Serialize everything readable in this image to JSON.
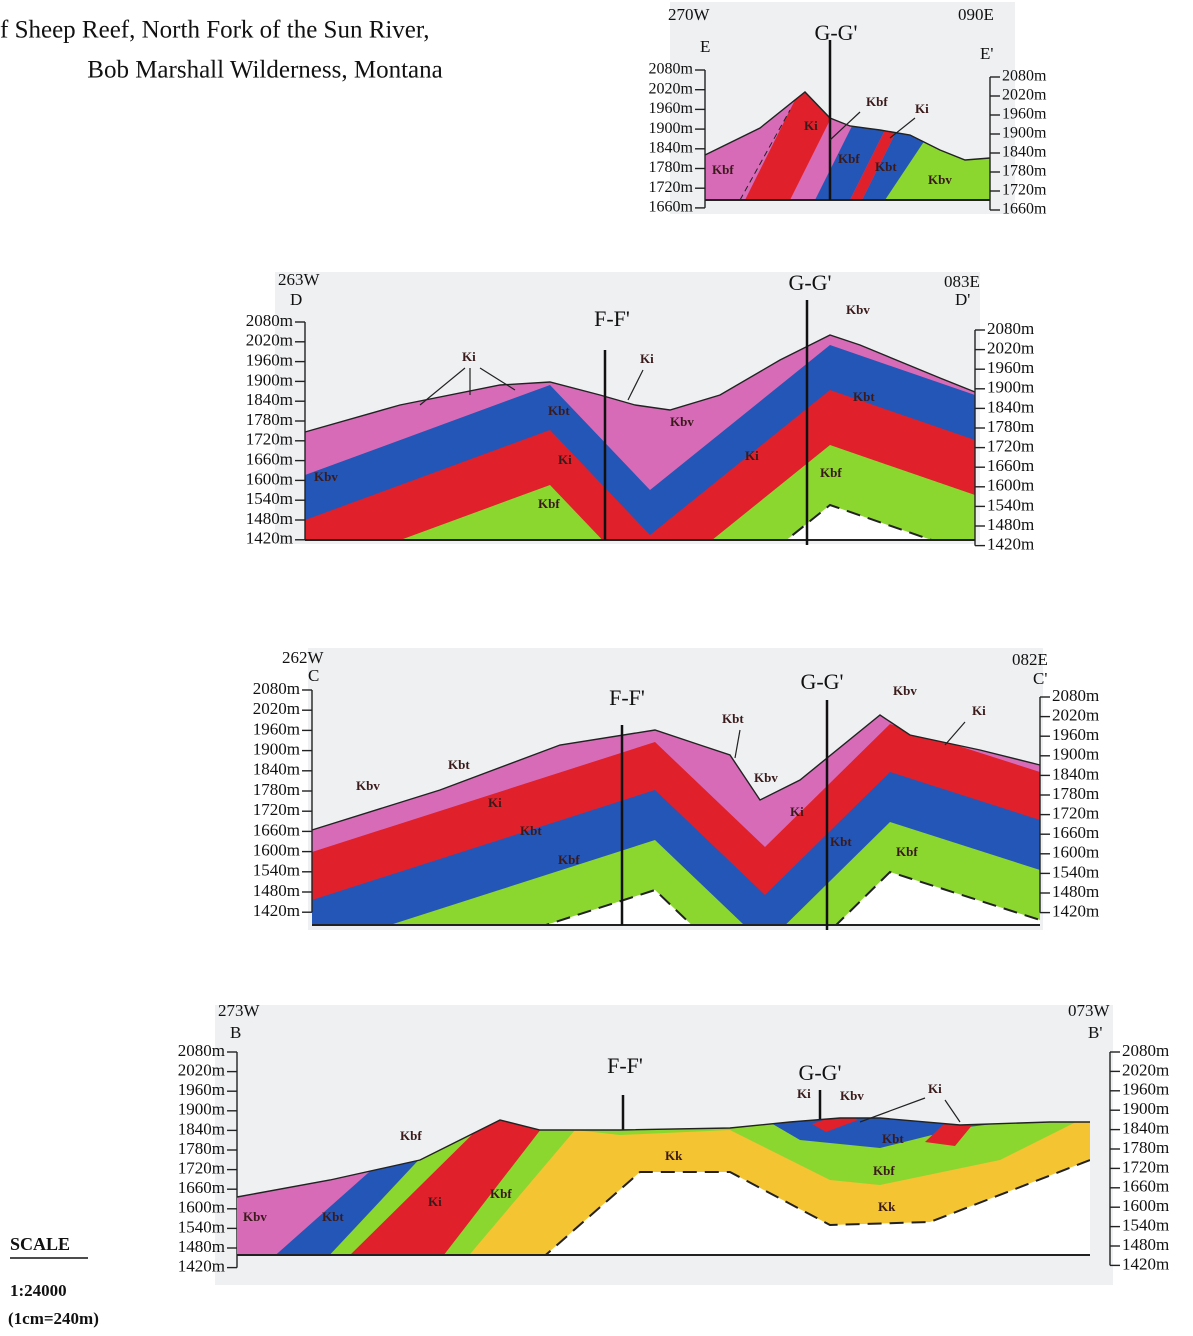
{
  "title_lines": [
    "f Sheep Reef, North Fork of the Sun River,",
    "Bob Marshall Wilderness, Montana"
  ],
  "elevation_labels": [
    "2080m",
    "2020m",
    "1960m",
    "1900m",
    "1840m",
    "1780m",
    "1720m",
    "1660m",
    "1600m",
    "1540m",
    "1480m",
    "1420m"
  ],
  "panels": [
    {
      "codes": [
        "270W",
        "090E"
      ],
      "letters": [
        "E",
        "E'"
      ],
      "sections": [
        "G-G'"
      ],
      "units": [
        "Ki",
        "Kbf",
        "Ki",
        "Kbf",
        "Kbf",
        "Kbt",
        "Kbv"
      ]
    },
    {
      "codes": [
        "263W",
        "083E"
      ],
      "letters": [
        "D",
        "D'"
      ],
      "sections": [
        "F-F'",
        "G-G'"
      ],
      "units": [
        "Kbv",
        "Ki",
        "Ki",
        "Kbt",
        "Kbv",
        "Kbt",
        "Ki",
        "Ki",
        "Kbv",
        "Kbf",
        "Kbf"
      ]
    },
    {
      "codes": [
        "262W",
        "082E"
      ],
      "letters": [
        "C",
        "C'"
      ],
      "sections": [
        "F-F'",
        "G-G'"
      ],
      "units": [
        "Kbv",
        "Kbt",
        "Ki",
        "Kbt",
        "Kbv",
        "Ki",
        "Kbv",
        "Ki",
        "Kbt",
        "Kbt",
        "Kbf",
        "Kbf"
      ]
    },
    {
      "codes": [
        "273W",
        "073W"
      ],
      "letters": [
        "B",
        "B'"
      ],
      "sections": [
        "F-F'",
        "G-G'"
      ],
      "units": [
        "Ki",
        "Kbv",
        "Ki",
        "Kbf",
        "Kbt",
        "Kk",
        "Kbf",
        "Ki",
        "Kbf",
        "Kk",
        "Kbv",
        "Kbt"
      ]
    }
  ],
  "scale": {
    "title": "SCALE",
    "ratio": "1:24000",
    "note": "(1cm=240m)"
  }
}
